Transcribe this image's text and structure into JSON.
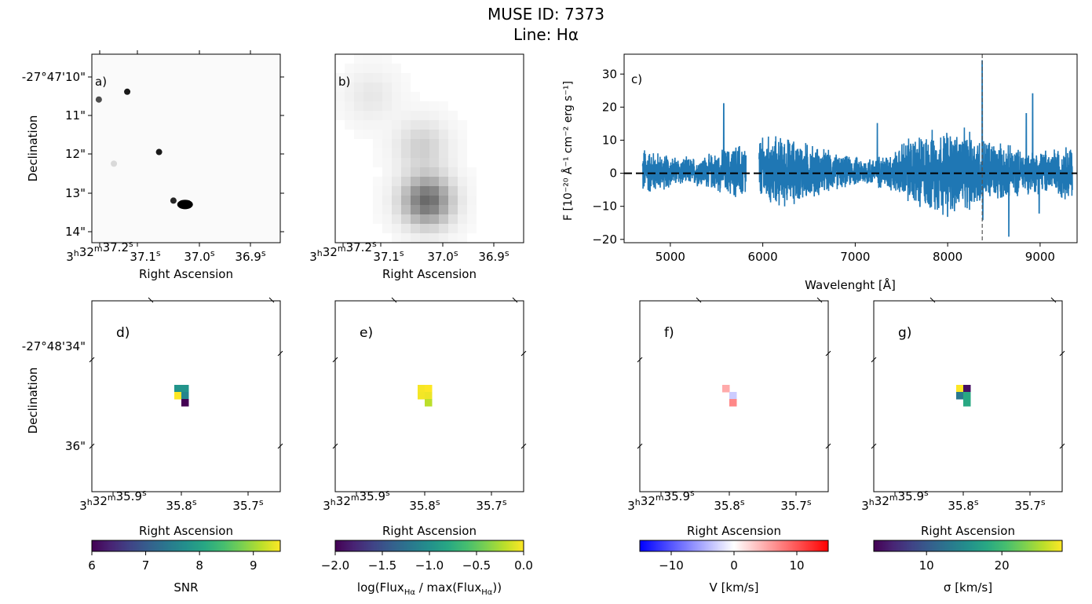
{
  "figure": {
    "title_line1": "MUSE ID: 7373",
    "title_line2": "Line: Hα"
  },
  "chart_data": [
    {
      "id": "a",
      "type": "heatmap",
      "panel_label": "a)",
      "xlabel": "Right Ascension",
      "ylabel": "Declination",
      "xticks": [
        "3h32m37.2s",
        "37.1s",
        "37.0s",
        "36.9s"
      ],
      "yticks": [
        "-27°47'10\"",
        "11\"",
        "12\"",
        "13\"",
        "14\""
      ],
      "colormap": "gray_r",
      "sources": [
        {
          "ra_s": 37.248,
          "dec_arcsec": 10.6,
          "intensity": 0.7
        },
        {
          "ra_s": 37.165,
          "dec_arcsec": 10.4,
          "intensity": 0.9
        },
        {
          "ra_s": 37.072,
          "dec_arcsec": 11.95,
          "intensity": 0.9
        },
        {
          "ra_s": 37.03,
          "dec_arcsec": 13.2,
          "intensity": 0.85
        },
        {
          "ra_s": 36.996,
          "dec_arcsec": 13.3,
          "intensity": 1.0
        },
        {
          "ra_s": 37.204,
          "dec_arcsec": 12.25,
          "intensity": 0.15
        }
      ]
    },
    {
      "id": "b",
      "type": "heatmap",
      "panel_label": "b)",
      "xlabel": "Right Ascension",
      "xticks": [
        "3h32m37.2s",
        "37.1s",
        "37.0s",
        "36.9s"
      ],
      "colormap": "gray_r",
      "blobs": [
        {
          "ra_s": 37.0,
          "dec_arcsec": 13.2,
          "intensity": 0.6
        },
        {
          "ra_s": 37.015,
          "dec_arcsec": 11.8,
          "intensity": 0.18
        },
        {
          "ra_s": 37.165,
          "dec_arcsec": 10.5,
          "intensity": 0.08
        }
      ]
    },
    {
      "id": "c",
      "type": "line",
      "panel_label": "c)",
      "xlabel": "Wavelenght [Å]",
      "ylabel": "F [10⁻²⁰ Å⁻¹ cm⁻² erg s⁻¹]",
      "xlim": [
        4500,
        9400
      ],
      "ylim": [
        -21,
        36
      ],
      "xticks": [
        5000,
        6000,
        7000,
        8000,
        9000
      ],
      "yticks": [
        -20,
        -10,
        0,
        10,
        20,
        30
      ],
      "color": "#1f77b4",
      "segments": [
        [
          4700,
          5820
        ],
        [
          5960,
          9350
        ]
      ],
      "zero_line": 0,
      "line_wavelength": 8374,
      "spikes": [
        {
          "x": 5577,
          "y": 21
        },
        {
          "x": 8374,
          "y": 34
        },
        {
          "x": 8380,
          "y": -14
        },
        {
          "x": 8920,
          "y": 24
        },
        {
          "x": 8661,
          "y": -19
        },
        {
          "x": 8850,
          "y": 18
        },
        {
          "x": 7240,
          "y": 15
        },
        {
          "x": 7700,
          "y": -10
        },
        {
          "x": 8000,
          "y": -13
        },
        {
          "x": 8990,
          "y": -12
        }
      ]
    },
    {
      "id": "d",
      "type": "heatmap",
      "panel_label": "d)",
      "xlabel": "Right Ascension",
      "ylabel": "Declination",
      "xticks": [
        "3h32m35.9s",
        "35.8s",
        "35.7s"
      ],
      "yticks": [
        "-27°48'34\"",
        "36\""
      ],
      "colorbar": {
        "label": "SNR",
        "colormap": "viridis",
        "range": [
          6,
          9.5
        ],
        "ticks": [
          6,
          7,
          8,
          9
        ]
      },
      "pixels": [
        {
          "col": 0,
          "row": 0,
          "value": 7.8
        },
        {
          "col": 1,
          "row": 0,
          "value": 7.8
        },
        {
          "col": 0,
          "row": 1,
          "value": 9.5
        },
        {
          "col": 1,
          "row": 1,
          "value": 7.6
        },
        {
          "col": 1,
          "row": 2,
          "value": 6.0
        }
      ]
    },
    {
      "id": "e",
      "type": "heatmap",
      "panel_label": "e)",
      "xlabel": "Right Ascension",
      "xticks": [
        "3h32m35.9s",
        "35.8s",
        "35.7s"
      ],
      "colorbar": {
        "label": "log(Flux_Hα / max(Flux_Hα))",
        "colormap": "viridis",
        "range": [
          -2,
          0
        ],
        "ticks": [
          "−2.0",
          "−1.5",
          "−1.0",
          "−0.5",
          "0.0"
        ]
      },
      "pixels": [
        {
          "col": 0,
          "row": 0,
          "value": -0.02
        },
        {
          "col": 1,
          "row": 0,
          "value": 0.0
        },
        {
          "col": 0,
          "row": 1,
          "value": -0.03
        },
        {
          "col": 1,
          "row": 1,
          "value": -0.05
        },
        {
          "col": 1,
          "row": 2,
          "value": -0.2
        }
      ]
    },
    {
      "id": "f",
      "type": "heatmap",
      "panel_label": "f)",
      "xlabel": "Right Ascension",
      "xticks": [
        "3h32m35.9s",
        "35.8s",
        "35.7s"
      ],
      "colorbar": {
        "label": "V [km/s]",
        "colormap": "bwr",
        "range": [
          -15,
          15
        ],
        "ticks": [
          "−10",
          "0",
          "10"
        ]
      },
      "pixels": [
        {
          "col": 0,
          "row": 0,
          "value": 5
        },
        {
          "col": 1,
          "row": 1,
          "value": -3
        },
        {
          "col": 1,
          "row": 2,
          "value": 7
        }
      ]
    },
    {
      "id": "g",
      "type": "heatmap",
      "panel_label": "g)",
      "xlabel": "Right Ascension",
      "xticks": [
        "3h32m35.9s",
        "35.8s",
        "35.7s"
      ],
      "colorbar": {
        "label": "σ [km/s]",
        "colormap": "viridis",
        "range": [
          3,
          28
        ],
        "ticks": [
          10,
          20
        ]
      },
      "pixels": [
        {
          "col": 0,
          "row": 0,
          "value": 28
        },
        {
          "col": 1,
          "row": 0,
          "value": 4
        },
        {
          "col": 0,
          "row": 1,
          "value": 13
        },
        {
          "col": 1,
          "row": 1,
          "value": 18
        },
        {
          "col": 1,
          "row": 2,
          "value": 18
        }
      ]
    }
  ]
}
